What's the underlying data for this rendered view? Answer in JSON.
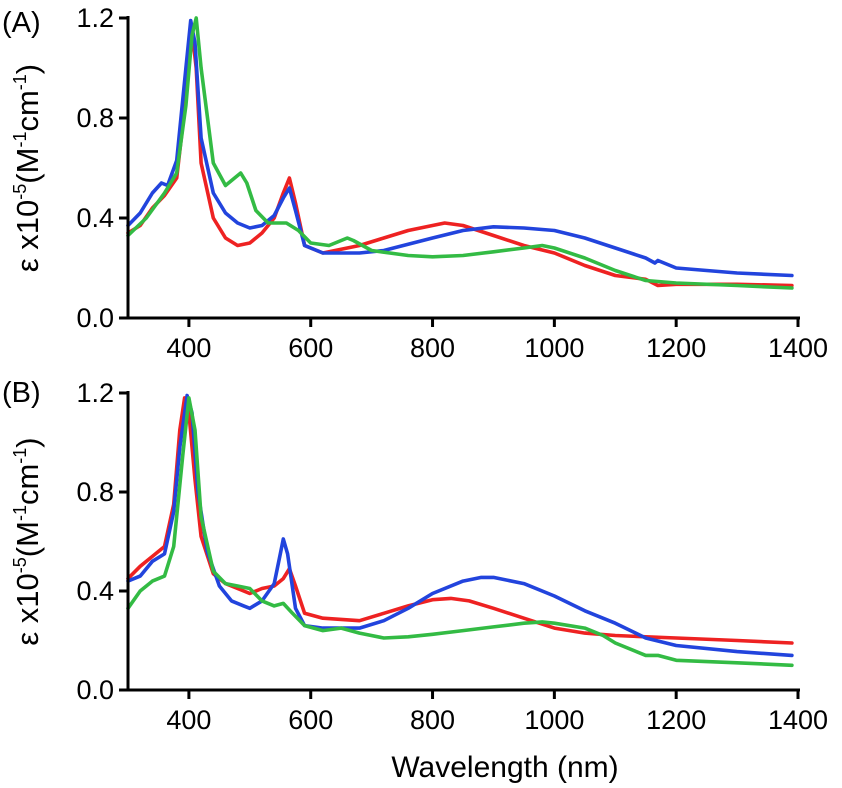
{
  "chart_data": [
    {
      "type": "line",
      "panel_label": "(A)",
      "ylabel": {
        "prefix": "ε x10",
        "exp1": "-5",
        "mid": "(M",
        "exp2": "-1",
        "unit": "cm",
        "exp3": "-1",
        "close": ")"
      },
      "xlabel": "",
      "xlim": [
        300,
        1400
      ],
      "ylim": [
        0.0,
        1.2
      ],
      "xticks": [
        400,
        600,
        800,
        1000,
        1200,
        1400
      ],
      "yticks": [
        0.0,
        0.4,
        0.8,
        1.2
      ],
      "xtick_labels": [
        "400",
        "600",
        "800",
        "1000",
        "1200",
        "1400"
      ],
      "ytick_labels": [
        "0.0",
        "0.4",
        "0.8",
        "1.2"
      ],
      "grid": false,
      "series": [
        {
          "color": "#ee2222",
          "x": [
            300,
            320,
            340,
            360,
            380,
            395,
            405,
            412,
            420,
            440,
            460,
            480,
            500,
            520,
            540,
            555,
            565,
            575,
            590,
            620,
            680,
            720,
            760,
            800,
            820,
            850,
            900,
            950,
            1000,
            1050,
            1100,
            1150,
            1170,
            1200,
            1300,
            1390
          ],
          "y": [
            0.34,
            0.37,
            0.44,
            0.49,
            0.56,
            0.88,
            1.15,
            1.0,
            0.62,
            0.4,
            0.32,
            0.29,
            0.3,
            0.34,
            0.4,
            0.5,
            0.56,
            0.46,
            0.29,
            0.26,
            0.29,
            0.32,
            0.35,
            0.37,
            0.38,
            0.37,
            0.33,
            0.29,
            0.26,
            0.21,
            0.17,
            0.155,
            0.13,
            0.135,
            0.135,
            0.13
          ]
        },
        {
          "color": "#2244dd",
          "x": [
            300,
            320,
            340,
            355,
            365,
            380,
            395,
            403,
            410,
            420,
            440,
            460,
            480,
            500,
            520,
            540,
            555,
            565,
            575,
            590,
            620,
            680,
            720,
            800,
            850,
            900,
            950,
            1000,
            1050,
            1100,
            1150,
            1165,
            1170,
            1200,
            1300,
            1390
          ],
          "y": [
            0.37,
            0.42,
            0.5,
            0.54,
            0.53,
            0.63,
            1.0,
            1.19,
            1.1,
            0.72,
            0.5,
            0.42,
            0.38,
            0.36,
            0.37,
            0.41,
            0.48,
            0.52,
            0.43,
            0.29,
            0.26,
            0.26,
            0.27,
            0.32,
            0.35,
            0.365,
            0.36,
            0.35,
            0.32,
            0.28,
            0.24,
            0.22,
            0.23,
            0.2,
            0.18,
            0.17
          ]
        },
        {
          "color": "#33bb44",
          "x": [
            300,
            330,
            360,
            380,
            395,
            405,
            412,
            420,
            440,
            460,
            475,
            485,
            495,
            510,
            530,
            560,
            580,
            600,
            630,
            660,
            670,
            700,
            760,
            800,
            850,
            900,
            950,
            980,
            1000,
            1050,
            1100,
            1150,
            1200,
            1300,
            1390
          ],
          "y": [
            0.33,
            0.4,
            0.5,
            0.58,
            0.85,
            1.13,
            1.2,
            1.0,
            0.62,
            0.53,
            0.56,
            0.58,
            0.54,
            0.43,
            0.38,
            0.38,
            0.35,
            0.3,
            0.29,
            0.32,
            0.31,
            0.27,
            0.25,
            0.245,
            0.25,
            0.265,
            0.28,
            0.29,
            0.28,
            0.24,
            0.19,
            0.15,
            0.14,
            0.13,
            0.12
          ]
        }
      ]
    },
    {
      "type": "line",
      "panel_label": "(B)",
      "ylabel": {
        "prefix": "ε x10",
        "exp1": "-5",
        "mid": "(M",
        "exp2": "-1",
        "unit": "cm",
        "exp3": "-1",
        "close": ")"
      },
      "xlabel": "Wavelength (nm)",
      "xlim": [
        300,
        1400
      ],
      "ylim": [
        0.0,
        1.2
      ],
      "xticks": [
        400,
        600,
        800,
        1000,
        1200,
        1400
      ],
      "yticks": [
        0.0,
        0.4,
        0.8,
        1.2
      ],
      "xtick_labels": [
        "400",
        "600",
        "800",
        "1000",
        "1200",
        "1400"
      ],
      "ytick_labels": [
        "0.0",
        "0.4",
        "0.8",
        "1.2"
      ],
      "grid": false,
      "series": [
        {
          "color": "#ee2222",
          "x": [
            300,
            320,
            340,
            360,
            375,
            385,
            393,
            400,
            410,
            420,
            440,
            460,
            480,
            500,
            520,
            540,
            555,
            565,
            575,
            590,
            620,
            680,
            720,
            760,
            800,
            830,
            860,
            900,
            950,
            1000,
            1050,
            1100,
            1150,
            1200,
            1300,
            1390
          ],
          "y": [
            0.45,
            0.5,
            0.54,
            0.58,
            0.75,
            1.05,
            1.18,
            1.12,
            0.85,
            0.62,
            0.47,
            0.43,
            0.41,
            0.39,
            0.41,
            0.42,
            0.45,
            0.49,
            0.42,
            0.31,
            0.29,
            0.28,
            0.31,
            0.34,
            0.365,
            0.37,
            0.36,
            0.33,
            0.29,
            0.25,
            0.23,
            0.22,
            0.215,
            0.21,
            0.2,
            0.19
          ]
        },
        {
          "color": "#2244dd",
          "x": [
            300,
            320,
            340,
            360,
            375,
            385,
            397,
            405,
            415,
            430,
            450,
            470,
            490,
            500,
            520,
            540,
            550,
            555,
            562,
            575,
            590,
            620,
            680,
            720,
            760,
            800,
            850,
            880,
            900,
            950,
            1000,
            1050,
            1100,
            1150,
            1200,
            1300,
            1390
          ],
          "y": [
            0.44,
            0.46,
            0.52,
            0.55,
            0.72,
            0.98,
            1.19,
            1.12,
            0.8,
            0.56,
            0.42,
            0.36,
            0.34,
            0.33,
            0.36,
            0.43,
            0.55,
            0.61,
            0.55,
            0.33,
            0.26,
            0.25,
            0.25,
            0.28,
            0.33,
            0.39,
            0.44,
            0.455,
            0.455,
            0.43,
            0.38,
            0.32,
            0.27,
            0.21,
            0.18,
            0.155,
            0.14
          ]
        },
        {
          "color": "#33bb44",
          "x": [
            300,
            320,
            340,
            360,
            375,
            390,
            400,
            410,
            420,
            440,
            460,
            480,
            500,
            520,
            540,
            555,
            570,
            590,
            620,
            650,
            680,
            720,
            760,
            800,
            850,
            900,
            950,
            980,
            1000,
            1050,
            1080,
            1100,
            1150,
            1170,
            1200,
            1300,
            1390
          ],
          "y": [
            0.33,
            0.4,
            0.44,
            0.46,
            0.58,
            0.95,
            1.18,
            1.05,
            0.7,
            0.48,
            0.43,
            0.42,
            0.41,
            0.36,
            0.34,
            0.35,
            0.31,
            0.26,
            0.24,
            0.25,
            0.23,
            0.21,
            0.215,
            0.225,
            0.24,
            0.255,
            0.27,
            0.275,
            0.27,
            0.25,
            0.22,
            0.19,
            0.14,
            0.14,
            0.12,
            0.11,
            0.1
          ]
        }
      ]
    }
  ]
}
